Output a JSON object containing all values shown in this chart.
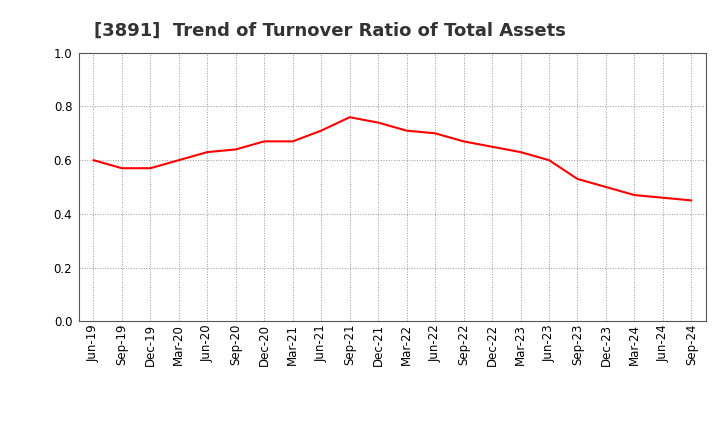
{
  "title": "[3891]  Trend of Turnover Ratio of Total Assets",
  "x_labels": [
    "Jun-19",
    "Sep-19",
    "Dec-19",
    "Mar-20",
    "Jun-20",
    "Sep-20",
    "Dec-20",
    "Mar-21",
    "Jun-21",
    "Sep-21",
    "Dec-21",
    "Mar-22",
    "Jun-22",
    "Sep-22",
    "Dec-22",
    "Mar-23",
    "Jun-23",
    "Sep-23",
    "Dec-23",
    "Mar-24",
    "Jun-24",
    "Sep-24"
  ],
  "y_values": [
    0.6,
    0.57,
    0.57,
    0.6,
    0.63,
    0.64,
    0.67,
    0.67,
    0.71,
    0.76,
    0.74,
    0.71,
    0.7,
    0.67,
    0.65,
    0.63,
    0.6,
    0.53,
    0.5,
    0.47,
    0.46,
    0.45
  ],
  "line_color": "#ff0000",
  "line_width": 1.5,
  "ylim": [
    0.0,
    1.0
  ],
  "yticks": [
    0.0,
    0.2,
    0.4,
    0.6,
    0.8,
    1.0
  ],
  "background_color": "#ffffff",
  "grid_color": "#999999",
  "title_fontsize": 13,
  "tick_fontsize": 8.5,
  "title_color": "#333333"
}
